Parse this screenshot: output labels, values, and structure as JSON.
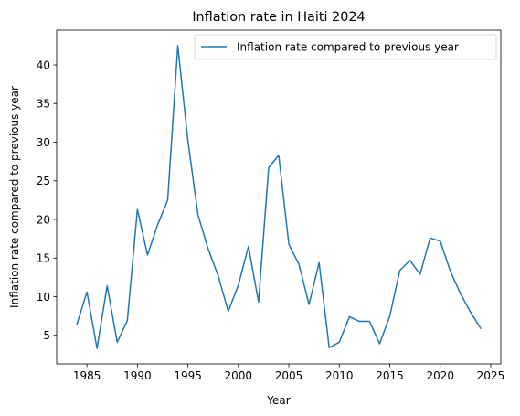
{
  "chart_data": {
    "type": "line",
    "title": "Inflation rate in Haiti 2024",
    "xlabel": "Year",
    "ylabel": "Inflation rate compared to previous year",
    "xlim": [
      1982.0,
      2026.0
    ],
    "ylim": [
      1.3,
      44.5
    ],
    "xticks": [
      1985,
      1990,
      1995,
      2000,
      2005,
      2010,
      2015,
      2020,
      2025
    ],
    "yticks": [
      5,
      10,
      15,
      20,
      25,
      30,
      35,
      40
    ],
    "grid": false,
    "legend_position": "top-right",
    "line_color": "#1f77b4",
    "series": [
      {
        "name": "Inflation rate compared to previous year",
        "x": [
          1984,
          1985,
          1986,
          1987,
          1988,
          1989,
          1990,
          1991,
          1992,
          1993,
          1994,
          1995,
          1996,
          1997,
          1998,
          1999,
          2000,
          2001,
          2002,
          2003,
          2004,
          2005,
          2006,
          2007,
          2008,
          2009,
          2010,
          2011,
          2012,
          2013,
          2014,
          2015,
          2016,
          2017,
          2018,
          2019,
          2020,
          2021,
          2022,
          2023,
          2024
        ],
        "y": [
          6.4,
          10.6,
          3.3,
          11.4,
          4.1,
          6.9,
          21.3,
          15.4,
          19.3,
          22.5,
          42.5,
          30.2,
          20.6,
          16.2,
          12.7,
          8.1,
          11.5,
          16.5,
          9.3,
          26.7,
          28.3,
          16.8,
          14.2,
          9.0,
          14.4,
          3.4,
          4.1,
          7.4,
          6.8,
          6.8,
          3.9,
          7.5,
          13.4,
          14.7,
          12.9,
          17.6,
          17.2,
          13.3,
          10.4,
          8.0,
          5.9
        ]
      }
    ]
  }
}
